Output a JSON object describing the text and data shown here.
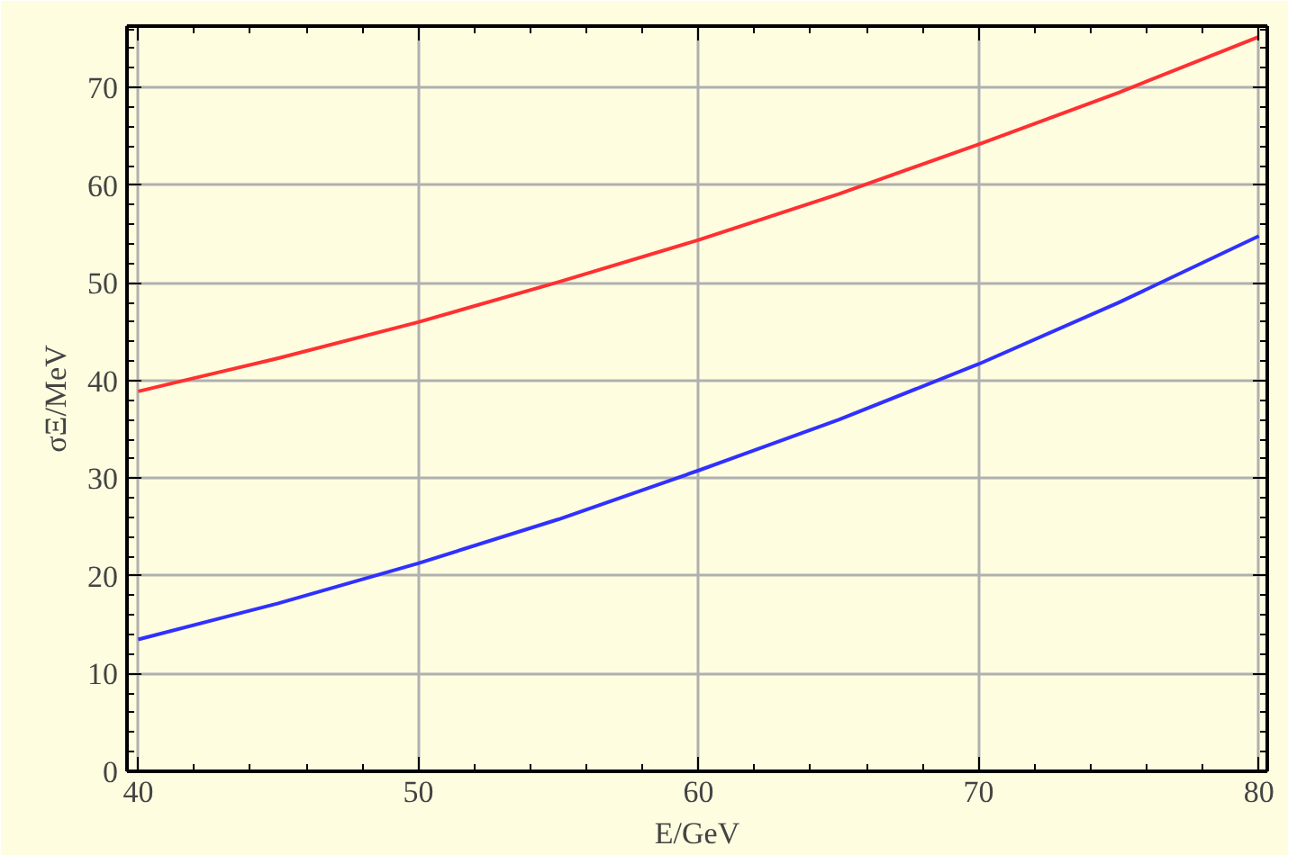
{
  "chart_data": {
    "type": "line",
    "xlabel": "E/GeV",
    "ylabel": "σΞ/MeV",
    "x": [
      40,
      45,
      50,
      55,
      60,
      65,
      70,
      75,
      80
    ],
    "series": [
      {
        "color": "#ff3030",
        "values": [
          38.9,
          42.3,
          46.0,
          50.1,
          54.4,
          59.1,
          64.2,
          69.5,
          75.2
        ]
      },
      {
        "color": "#3030ff",
        "values": [
          13.5,
          17.2,
          21.3,
          25.8,
          30.8,
          36.0,
          41.7,
          48.0,
          54.8
        ]
      }
    ],
    "xlim": [
      39.6,
      80.3
    ],
    "ylim": [
      0,
      76.3
    ],
    "xticks": [
      40,
      50,
      60,
      70,
      80
    ],
    "yticks": [
      0,
      10,
      20,
      30,
      40,
      50,
      60,
      70
    ],
    "grid": true,
    "marker": "none",
    "line_style": "solid"
  }
}
